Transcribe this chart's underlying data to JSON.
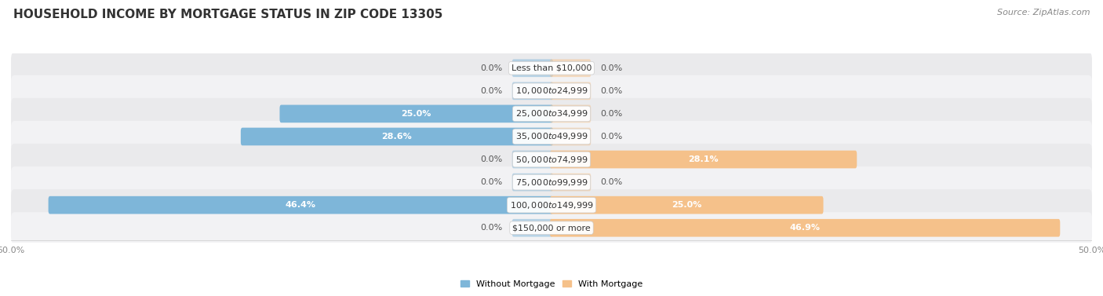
{
  "title": "HOUSEHOLD INCOME BY MORTGAGE STATUS IN ZIP CODE 13305",
  "source": "Source: ZipAtlas.com",
  "categories": [
    "Less than $10,000",
    "$10,000 to $24,999",
    "$25,000 to $34,999",
    "$35,000 to $49,999",
    "$50,000 to $74,999",
    "$75,000 to $99,999",
    "$100,000 to $149,999",
    "$150,000 or more"
  ],
  "without_mortgage": [
    0.0,
    0.0,
    25.0,
    28.6,
    0.0,
    0.0,
    46.4,
    0.0
  ],
  "with_mortgage": [
    0.0,
    0.0,
    0.0,
    0.0,
    28.1,
    0.0,
    25.0,
    46.9
  ],
  "color_without": "#7EB6D9",
  "color_with": "#F5C18A",
  "row_color_even": "#EAEAEC",
  "row_color_odd": "#F2F2F4",
  "xlim_left": -50.0,
  "xlim_right": 50.0,
  "title_fontsize": 11,
  "source_fontsize": 8,
  "bar_label_fontsize": 8,
  "category_fontsize": 8,
  "axis_fontsize": 8,
  "legend_fontsize": 8
}
